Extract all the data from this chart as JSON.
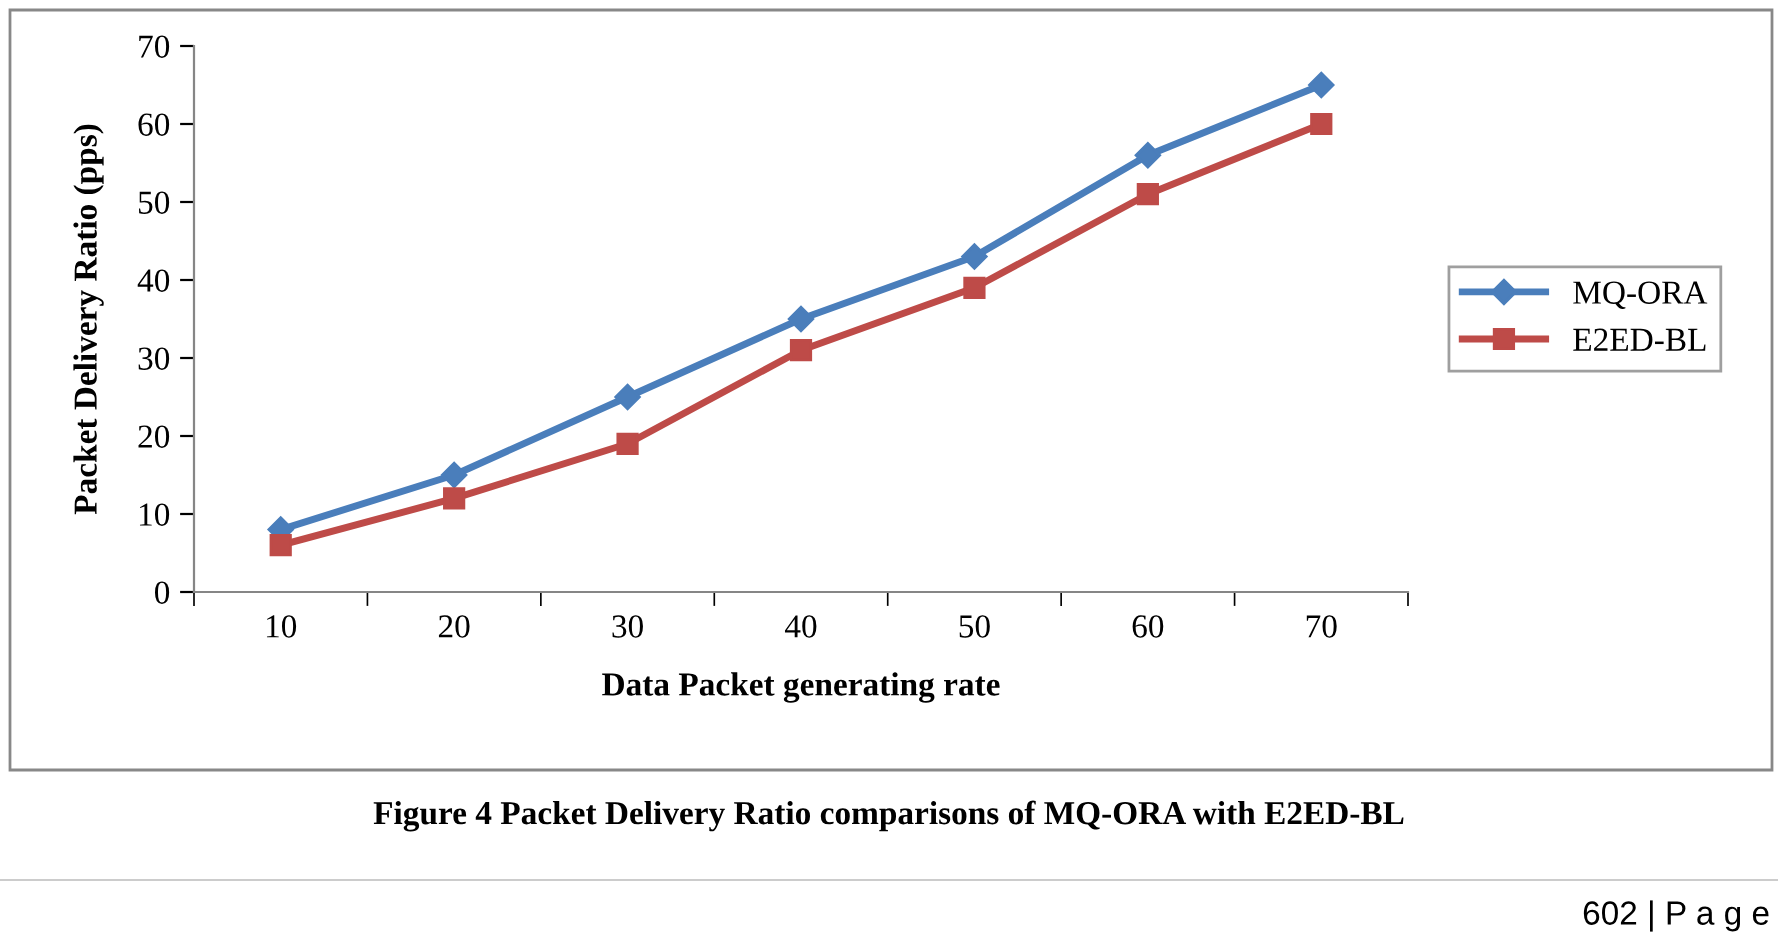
{
  "chart_data": {
    "type": "line",
    "ylabel": "Packet Delivery Ratio (pps)",
    "xlabel": "Data Packet generating rate",
    "categories": [
      "10",
      "20",
      "30",
      "40",
      "50",
      "60",
      "70"
    ],
    "series": [
      {
        "name": "MQ-ORA",
        "color": "#4a7ebb",
        "values": [
          8,
          15,
          25,
          35,
          43,
          56,
          65
        ],
        "marker": "diamond"
      },
      {
        "name": "E2ED-BL",
        "color": "#be4b48",
        "values": [
          6,
          12,
          19,
          31,
          39,
          51,
          60
        ],
        "marker": "square"
      }
    ],
    "ylim": [
      0,
      70
    ],
    "yticks": [
      0,
      10,
      20,
      30,
      40,
      50,
      60,
      70
    ],
    "grid": false,
    "legend": "right",
    "line_style": "solid",
    "annotations": [
      "Figure 4 Packet Delivery Ratio comparisons of MQ-ORA with E2ED-BL",
      "602 | P a g e"
    ]
  }
}
